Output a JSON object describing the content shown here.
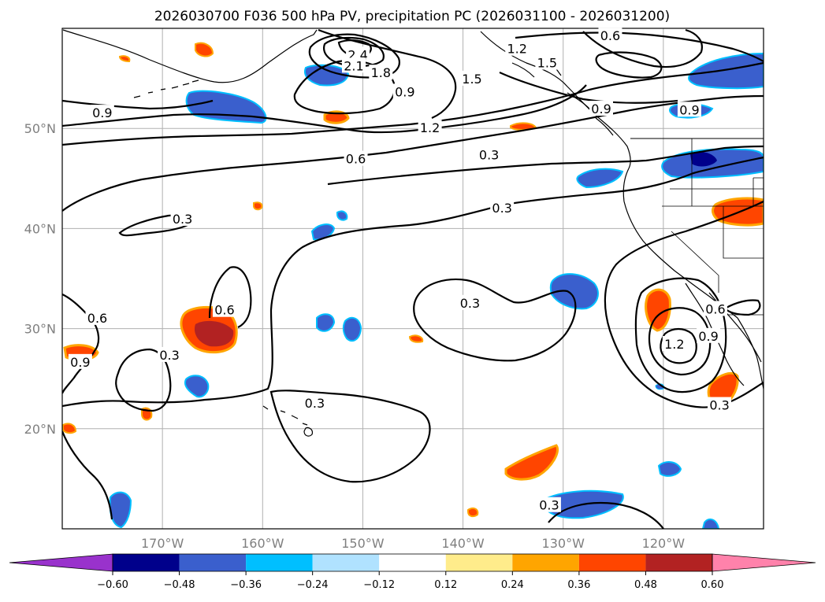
{
  "chart_data": {
    "type": "map",
    "title": "2026030700 F036 500 hPa PV, precipitation PC (2026031100 - 2026031200)",
    "lon_ticks": [
      {
        "lon": -170,
        "label": "170°W"
      },
      {
        "lon": -160,
        "label": "160°W"
      },
      {
        "lon": -150,
        "label": "150°W"
      },
      {
        "lon": -140,
        "label": "140°W"
      },
      {
        "lon": -130,
        "label": "130°W"
      },
      {
        "lon": -120,
        "label": "120°W"
      }
    ],
    "lat_ticks": [
      {
        "lat": 20,
        "label": "20°N"
      },
      {
        "lat": 30,
        "label": "30°N"
      },
      {
        "lat": 40,
        "label": "40°N"
      },
      {
        "lat": 50,
        "label": "50°N"
      }
    ],
    "lon_range": [
      -180,
      -110
    ],
    "lat_range": [
      10,
      60
    ],
    "colorbar": {
      "extend": "both",
      "levels": [
        -0.6,
        -0.48,
        -0.36,
        -0.24,
        -0.12,
        0.12,
        0.24,
        0.36,
        0.48,
        0.6
      ],
      "tick_labels": [
        "−0.60",
        "−0.48",
        "−0.36",
        "−0.24",
        "−0.12",
        "0.12",
        "0.24",
        "0.36",
        "0.48",
        "0.60"
      ],
      "colors": [
        "#9932cc",
        "#00008b",
        "#3a5fcd",
        "#00bfff",
        "#b0e2ff",
        "#ffffff",
        "#ffec8b",
        "#ffa500",
        "#ff4500",
        "#b22222",
        "#ff82ab"
      ]
    },
    "contour_labels": [
      {
        "text": "2.4",
        "lon": -150.5,
        "lat": 57.3
      },
      {
        "text": "2.1",
        "lon": -150.9,
        "lat": 56.2
      },
      {
        "text": "1.8",
        "lon": -148.2,
        "lat": 55.5
      },
      {
        "text": "1.5",
        "lon": -139.1,
        "lat": 54.9
      },
      {
        "text": "1.2",
        "lon": -134.6,
        "lat": 57.9
      },
      {
        "text": "1.5",
        "lon": -131.6,
        "lat": 56.5
      },
      {
        "text": "0.6",
        "lon": -125.3,
        "lat": 59.2
      },
      {
        "text": "0.9",
        "lon": -145.8,
        "lat": 53.6
      },
      {
        "text": "0.9",
        "lon": -126.2,
        "lat": 51.9
      },
      {
        "text": "0.9",
        "lon": -117.4,
        "lat": 51.8
      },
      {
        "text": "1.2",
        "lon": -143.3,
        "lat": 50.0
      },
      {
        "text": "0.9",
        "lon": -176.0,
        "lat": 51.5
      },
      {
        "text": "0.6",
        "lon": -150.7,
        "lat": 46.9
      },
      {
        "text": "0.3",
        "lon": -137.4,
        "lat": 47.3
      },
      {
        "text": "0.3",
        "lon": -136.1,
        "lat": 42.0
      },
      {
        "text": "0.3",
        "lon": -168.0,
        "lat": 40.9
      },
      {
        "text": "0.6",
        "lon": -176.5,
        "lat": 31.0
      },
      {
        "text": "0.9",
        "lon": -178.2,
        "lat": 26.6
      },
      {
        "text": "0.6",
        "lon": -163.8,
        "lat": 31.8
      },
      {
        "text": "0.3",
        "lon": -169.3,
        "lat": 27.3
      },
      {
        "text": "0.3",
        "lon": -139.3,
        "lat": 32.5
      },
      {
        "text": "0.3",
        "lon": -154.8,
        "lat": 22.5
      },
      {
        "text": "0.6",
        "lon": -114.8,
        "lat": 31.9
      },
      {
        "text": "0.9",
        "lon": -115.5,
        "lat": 29.2
      },
      {
        "text": "1.2",
        "lon": -118.9,
        "lat": 28.4
      },
      {
        "text": "0.3",
        "lon": -114.4,
        "lat": 22.3
      },
      {
        "text": "0.3",
        "lon": -131.4,
        "lat": 12.3
      }
    ],
    "shaded_areas_note": "precipitation PC anomaly patches (blue negative, orange/red positive)"
  }
}
